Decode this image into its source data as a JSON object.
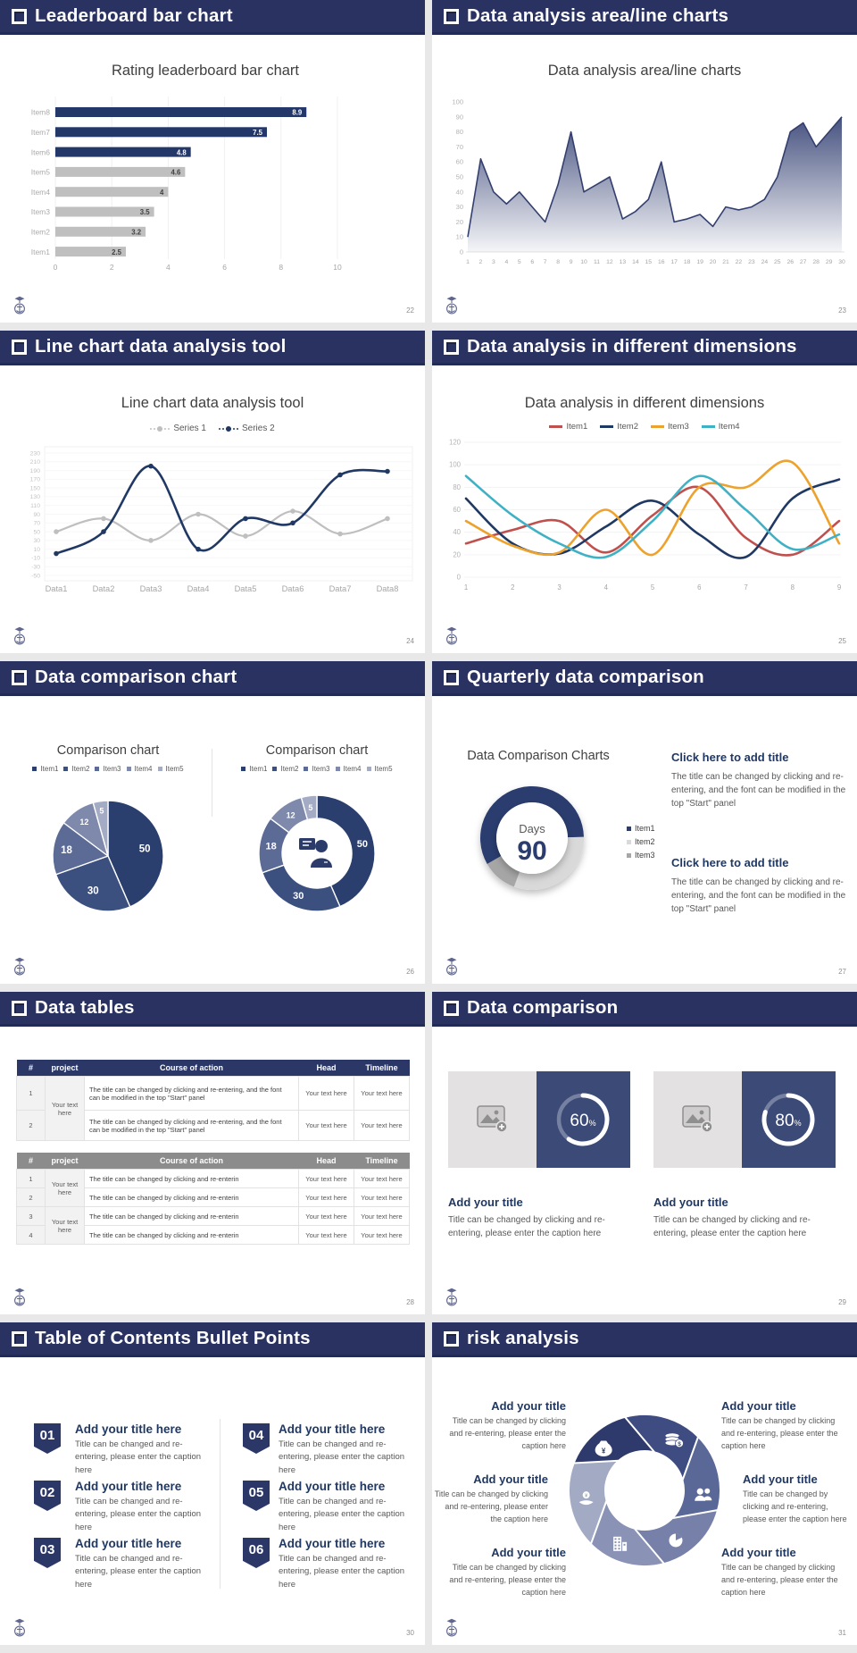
{
  "deck": {
    "accent_navy": "#2A3262",
    "bar_navy": "#243769",
    "gray_fill": "#BFBFBF",
    "gutter": "#E8E8E8"
  },
  "slides": {
    "s1": {
      "header": "Leaderboard bar chart",
      "page": "22"
    },
    "s2": {
      "header": "Data analysis area/line charts",
      "page": "23"
    },
    "s3": {
      "header": "Line chart data analysis tool",
      "page": "24"
    },
    "s4": {
      "header": "Data analysis in different dimensions",
      "page": "25"
    },
    "s5": {
      "header": "Data comparison chart",
      "page": "26"
    },
    "s6": {
      "header": "Quarterly data comparison",
      "page": "27",
      "blocks": [
        {
          "title": "Click here to add title",
          "body": "The title can be changed by clicking and re-entering, and the font can be modified in the top \"Start\" panel"
        },
        {
          "title": "Click here to add title",
          "body": "The title can be changed by clicking and re-entering, and the font can be modified in the top \"Start\" panel"
        }
      ]
    },
    "s7": {
      "header": "Data tables",
      "page": "28",
      "table1": {
        "headers": [
          "#",
          "project",
          "Course of action",
          "Head",
          "Timeline"
        ],
        "project": "Your text here",
        "rows": [
          {
            "num": "1",
            "course": "The title can be changed by clicking and re-entering, and the font can be modified in the top \"Start\" panel",
            "head": "Your text here",
            "timeline": "Your text here"
          },
          {
            "num": "2",
            "course": "The title can be changed by clicking and re-entering, and the font can be modified in the top \"Start\" panel",
            "head": "Your text here",
            "timeline": "Your text here"
          }
        ]
      },
      "table2": {
        "headers": [
          "#",
          "project",
          "Course of action",
          "Head",
          "Timeline"
        ],
        "project1": "Your text here",
        "project2": "Your text here",
        "rows": [
          {
            "num": "1",
            "course": "The title can be changed by clicking and re-enterin",
            "head": "Your text here",
            "timeline": "Your text here"
          },
          {
            "num": "2",
            "course": "The title can be changed by clicking and re-enterin",
            "head": "Your text here",
            "timeline": "Your text here"
          },
          {
            "num": "3",
            "course": "The title can be changed by clicking and re-enterin",
            "head": "Your text here",
            "timeline": "Your text here"
          },
          {
            "num": "4",
            "course": "The title can be changed by clicking and re-enterin",
            "head": "Your text here",
            "timeline": "Your text here"
          }
        ]
      }
    },
    "s8": {
      "header": "Data comparison",
      "page": "29",
      "cards": [
        {
          "title": "Add your title",
          "caption": "Title can be changed by clicking and re-entering, please enter the caption here"
        },
        {
          "title": "Add your title",
          "caption": "Title can be changed by clicking and re-entering, please enter the caption here"
        }
      ]
    },
    "s9": {
      "header": "Table of Contents Bullet Points",
      "page": "30",
      "items": [
        {
          "num": "01",
          "title": "Add your title here",
          "caption": "Title can be changed and re-entering, please enter the caption here"
        },
        {
          "num": "02",
          "title": "Add your title here",
          "caption": "Title can be changed and re-entering, please enter the caption here"
        },
        {
          "num": "03",
          "title": "Add your title here",
          "caption": "Title can be changed and re-entering, please enter the caption here"
        },
        {
          "num": "04",
          "title": "Add your title here",
          "caption": "Title can be changed and re-entering, please enter the caption here"
        },
        {
          "num": "05",
          "title": "Add your title here",
          "caption": "Title can be changed and re-entering, please enter the caption here"
        },
        {
          "num": "06",
          "title": "Add your title here",
          "caption": "Title can be changed and re-entering, please enter the caption here"
        }
      ]
    },
    "s10": {
      "header": "risk analysis",
      "page": "31",
      "blocks": [
        {
          "title": "Add your title",
          "caption": "Title can be changed by clicking and re-entering, please enter the caption here"
        },
        {
          "title": "Add your title",
          "caption": "Title can be changed by clicking and re-entering, please enter the caption here"
        },
        {
          "title": "Add your title",
          "caption": "Title can be changed by clicking and re-entering, please enter the caption here"
        },
        {
          "title": "Add your title",
          "caption": "Title can be changed by clicking and re-entering, please enter the caption here"
        },
        {
          "title": "Add your title",
          "caption": "Title can be changed by clicking and re-entering, please enter the caption here"
        },
        {
          "title": "Add your title",
          "caption": "Title can be changed by clicking and re-entering, please enter the caption here"
        }
      ],
      "icons": [
        "money-bag-icon",
        "coins-icon",
        "people-icon",
        "pie-chart-icon",
        "building-icon",
        "hand-coin-icon"
      ]
    }
  },
  "chart_data": [
    {
      "id": "leaderboard-bar",
      "type": "bar",
      "orientation": "horizontal",
      "title": "Rating leaderboard bar chart",
      "categories": [
        "Item8",
        "Item7",
        "Item6",
        "Item5",
        "Item4",
        "Item3",
        "Item2",
        "Item1"
      ],
      "values": [
        8.9,
        7.5,
        4.8,
        4.6,
        4,
        3.5,
        3.2,
        2.5
      ],
      "bar_colors": [
        "#243769",
        "#243769",
        "#243769",
        "#BFBFBF",
        "#BFBFBF",
        "#BFBFBF",
        "#BFBFBF",
        "#BFBFBF"
      ],
      "xlim": [
        0,
        10
      ],
      "xticks": [
        0,
        2,
        4,
        6,
        8,
        10
      ],
      "grid": true
    },
    {
      "id": "area-line",
      "type": "area",
      "title": "Data analysis area/line charts",
      "x": [
        1,
        2,
        3,
        4,
        5,
        6,
        7,
        8,
        9,
        10,
        11,
        12,
        13,
        14,
        15,
        16,
        17,
        18,
        19,
        20,
        21,
        22,
        23,
        24,
        25,
        26,
        27,
        28,
        29,
        30
      ],
      "values": [
        10,
        62,
        40,
        32,
        40,
        30,
        20,
        45,
        80,
        40,
        45,
        50,
        22,
        27,
        35,
        60,
        20,
        22,
        25,
        17,
        30,
        28,
        30,
        35,
        50,
        80,
        86,
        70,
        80,
        90
      ],
      "ylim": [
        0,
        100
      ],
      "ytick_step": 10,
      "line_color": "#333F6E",
      "fill_top": "#3D4979",
      "fill_bottom": "#FFFFFF"
    },
    {
      "id": "two-series-line",
      "type": "line",
      "title": "Line chart data analysis tool",
      "categories": [
        "Data1",
        "Data2",
        "Data3",
        "Data4",
        "Data5",
        "Data6",
        "Data7",
        "Data8"
      ],
      "series": [
        {
          "name": "Series 1",
          "color": "#BFBFBF",
          "values": [
            50,
            80,
            30,
            90,
            40,
            97,
            45,
            80
          ]
        },
        {
          "name": "Series 2",
          "color": "#1F3864",
          "values": [
            0,
            50,
            200,
            10,
            80,
            70,
            180,
            188
          ]
        }
      ],
      "ylim": [
        -50,
        230
      ],
      "ytick_step": 20,
      "grid": true,
      "legend_position": "top"
    },
    {
      "id": "multi-line",
      "type": "line",
      "title": "Data analysis in different dimensions",
      "x": [
        1,
        2,
        3,
        4,
        5,
        6,
        7,
        8,
        9
      ],
      "series": [
        {
          "name": "Item1",
          "color": "#C0504D",
          "values": [
            30,
            42,
            50,
            22,
            55,
            80,
            35,
            20,
            50
          ]
        },
        {
          "name": "Item2",
          "color": "#1F3864",
          "values": [
            70,
            30,
            21,
            45,
            68,
            38,
            18,
            70,
            87
          ]
        },
        {
          "name": "Item3",
          "color": "#EDA22D",
          "values": [
            50,
            28,
            22,
            60,
            20,
            80,
            80,
            102,
            30
          ]
        },
        {
          "name": "Item4",
          "color": "#3FB1C5",
          "values": [
            90,
            55,
            30,
            18,
            50,
            90,
            60,
            25,
            38
          ]
        }
      ],
      "ylim": [
        0,
        120
      ],
      "ytick_step": 20,
      "grid": true,
      "legend_position": "top"
    },
    {
      "id": "comparison-pie",
      "type": "pie",
      "title": "Comparison chart",
      "labels": [
        "Item1",
        "Item2",
        "Item3",
        "Item4",
        "Item5"
      ],
      "values": [
        50,
        30,
        18,
        12,
        5
      ],
      "colors": [
        "#2A3F6E",
        "#3C5080",
        "#5C6A96",
        "#7E89AC",
        "#A3ABC5"
      ]
    },
    {
      "id": "comparison-donut",
      "type": "donut",
      "title": "Comparison chart",
      "labels": [
        "Item1",
        "Item2",
        "Item3",
        "Item4",
        "Item5"
      ],
      "values": [
        50,
        30,
        18,
        12,
        5
      ],
      "colors": [
        "#2A3F6E",
        "#3C5080",
        "#5C6A96",
        "#7E89AC",
        "#A3ABC5"
      ],
      "center_icon": "presenter-person-icon"
    },
    {
      "id": "quarterly-donut",
      "type": "donut",
      "title": "Data Comparison Charts",
      "labels": [
        "Item1",
        "Item2",
        "Item3"
      ],
      "values_pct": [
        58,
        31,
        11
      ],
      "colors": [
        "#2B3C6E",
        "#D9D9D9",
        "#A6A6A6"
      ],
      "start_angle_deg": 240,
      "center_label": "Days",
      "center_value": "90"
    },
    {
      "id": "progress-60",
      "type": "progress-ring",
      "value": 60,
      "unit": "%"
    },
    {
      "id": "progress-80",
      "type": "progress-ring",
      "value": 80,
      "unit": "%"
    }
  ]
}
